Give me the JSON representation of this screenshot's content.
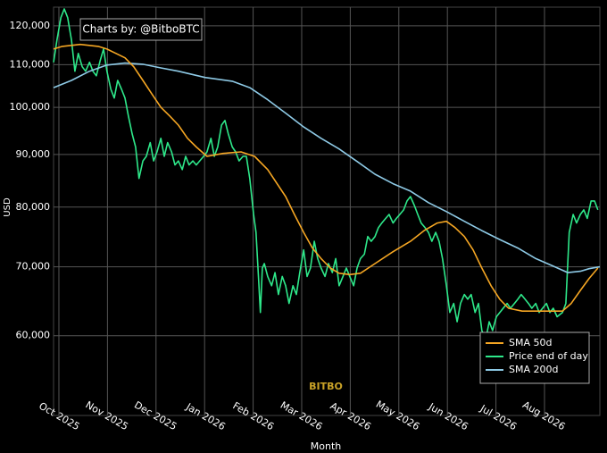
{
  "chart_data": {
    "type": "line",
    "annotation": "Charts by: @BitboBTC",
    "watermark": "BITBO",
    "xlabel": "Month",
    "ylabel": "USD",
    "log_y": true,
    "grid": true,
    "legend": "lower right",
    "xlim": [
      -0.11,
      11.14
    ],
    "xticks": [
      {
        "value": 0,
        "label": "Oct 2025"
      },
      {
        "value": 1,
        "label": "Nov 2025"
      },
      {
        "value": 2,
        "label": "Dec 2025"
      },
      {
        "value": 3,
        "label": "Jan 2026"
      },
      {
        "value": 4,
        "label": "Feb 2026"
      },
      {
        "value": 5,
        "label": "Mar 2026"
      },
      {
        "value": 6,
        "label": "Apr 2026"
      },
      {
        "value": 7,
        "label": "May 2026"
      },
      {
        "value": 8,
        "label": "Jun 2026"
      },
      {
        "value": 9,
        "label": "Jul 2026"
      },
      {
        "value": 10,
        "label": "Aug 2026"
      }
    ],
    "ylim": [
      50200,
      125100
    ],
    "yticks": [
      {
        "value": 60000,
        "label": "60,000"
      },
      {
        "value": 70000,
        "label": "70,000"
      },
      {
        "value": 80000,
        "label": "80,000"
      },
      {
        "value": 90000,
        "label": "90,000"
      },
      {
        "value": 100000,
        "label": "100,000"
      },
      {
        "value": 110000,
        "label": "110,000"
      },
      {
        "value": 120000,
        "label": "120,000"
      }
    ],
    "series": [
      {
        "name": "SMA 50d",
        "color": "#f5a623",
        "x": [
          -0.11,
          0.07,
          0.44,
          0.81,
          0.99,
          1.36,
          1.54,
          1.73,
          1.91,
          2.1,
          2.28,
          2.46,
          2.65,
          2.83,
          3.05,
          3.38,
          3.75,
          4.03,
          4.3,
          4.67,
          4.85,
          5.04,
          5.22,
          5.4,
          5.59,
          5.77,
          5.99,
          6.21,
          6.51,
          6.88,
          7.24,
          7.52,
          7.79,
          7.98,
          8.16,
          8.35,
          8.53,
          8.71,
          8.9,
          9.08,
          9.26,
          9.54,
          9.82,
          10.37,
          10.55,
          10.74,
          10.92,
          11.1
        ],
        "values": [
          113900,
          114600,
          115100,
          114600,
          113900,
          111700,
          109500,
          106200,
          103100,
          100000,
          98100,
          96100,
          93300,
          91500,
          89600,
          90200,
          90500,
          89600,
          87000,
          81900,
          78700,
          75600,
          73000,
          71300,
          69800,
          69000,
          68800,
          69000,
          70500,
          72400,
          74100,
          75900,
          77200,
          77500,
          76400,
          74900,
          72700,
          69800,
          67100,
          65100,
          63800,
          63400,
          63400,
          63400,
          64500,
          66400,
          68200,
          69800
        ]
      },
      {
        "name": "Price end of day",
        "color": "#2ee88a",
        "x": [
          -0.11,
          -0.04,
          0.04,
          0.11,
          0.18,
          0.26,
          0.33,
          0.4,
          0.48,
          0.55,
          0.63,
          0.7,
          0.77,
          0.85,
          0.92,
          0.99,
          1.07,
          1.14,
          1.21,
          1.29,
          1.36,
          1.43,
          1.51,
          1.58,
          1.65,
          1.73,
          1.8,
          1.88,
          1.95,
          2.02,
          2.1,
          2.17,
          2.24,
          2.32,
          2.39,
          2.46,
          2.54,
          2.61,
          2.68,
          2.76,
          2.83,
          2.9,
          2.98,
          3.05,
          3.13,
          3.2,
          3.27,
          3.35,
          3.42,
          3.49,
          3.57,
          3.64,
          3.71,
          3.79,
          3.86,
          3.93,
          4.01,
          4.06,
          4.12,
          4.15,
          4.19,
          4.23,
          4.3,
          4.38,
          4.45,
          4.52,
          4.6,
          4.67,
          4.74,
          4.82,
          4.89,
          4.96,
          5.04,
          5.11,
          5.18,
          5.26,
          5.33,
          5.4,
          5.48,
          5.55,
          5.63,
          5.7,
          5.77,
          5.85,
          5.92,
          5.99,
          6.07,
          6.14,
          6.21,
          6.29,
          6.36,
          6.43,
          6.51,
          6.58,
          6.65,
          6.73,
          6.8,
          6.88,
          6.95,
          7.02,
          7.1,
          7.17,
          7.24,
          7.32,
          7.39,
          7.46,
          7.54,
          7.61,
          7.68,
          7.76,
          7.83,
          7.9,
          7.98,
          8.05,
          8.13,
          8.2,
          8.27,
          8.35,
          8.42,
          8.49,
          8.57,
          8.64,
          8.71,
          8.79,
          8.86,
          8.93,
          9.01,
          9.08,
          9.15,
          9.23,
          9.3,
          9.38,
          9.45,
          9.52,
          9.6,
          9.67,
          9.74,
          9.82,
          9.89,
          9.96,
          10.04,
          10.11,
          10.18,
          10.26,
          10.37,
          10.44,
          10.51,
          10.59,
          10.66,
          10.74,
          10.81,
          10.88,
          10.96,
          11.03,
          11.1
        ],
        "values": [
          110600,
          116200,
          122200,
          124600,
          122200,
          116200,
          108400,
          112800,
          109500,
          108400,
          110600,
          108400,
          107300,
          111000,
          113900,
          108400,
          104100,
          102100,
          106200,
          104100,
          102100,
          98100,
          94200,
          91500,
          85300,
          88700,
          89600,
          92400,
          88700,
          90500,
          93300,
          89600,
          92400,
          90500,
          87900,
          88700,
          87000,
          89600,
          87900,
          88700,
          87900,
          88700,
          89600,
          90500,
          93300,
          89600,
          91500,
          96100,
          97100,
          94200,
          91500,
          90500,
          88700,
          89600,
          89600,
          85300,
          78700,
          75600,
          67100,
          63200,
          69800,
          70500,
          68500,
          67100,
          69100,
          65800,
          68500,
          67100,
          64500,
          67100,
          65800,
          69100,
          72700,
          68500,
          69800,
          74100,
          71300,
          69800,
          68500,
          70500,
          69100,
          71300,
          67100,
          68500,
          69800,
          68500,
          67100,
          69800,
          71300,
          72000,
          74900,
          74100,
          74900,
          76400,
          77200,
          78000,
          78700,
          77200,
          78000,
          78700,
          79500,
          81100,
          81900,
          80300,
          78700,
          77200,
          76400,
          75600,
          74100,
          75600,
          74100,
          71300,
          67100,
          63200,
          64500,
          61900,
          64500,
          65800,
          65100,
          65800,
          63200,
          64500,
          60700,
          59500,
          61900,
          60700,
          62600,
          63200,
          63800,
          64500,
          63800,
          64500,
          65100,
          65800,
          65100,
          64500,
          63800,
          64500,
          63200,
          63800,
          64500,
          63200,
          63800,
          62600,
          63200,
          64500,
          75600,
          78700,
          77200,
          78700,
          79500,
          78000,
          81100,
          81100,
          79500
        ]
      },
      {
        "name": "SMA 200d",
        "color": "#8ecae6",
        "x": [
          -0.11,
          0.26,
          0.63,
          0.99,
          1.36,
          1.73,
          2.1,
          2.46,
          3.01,
          3.57,
          3.93,
          4.3,
          4.67,
          5.04,
          5.4,
          5.77,
          6.14,
          6.51,
          6.88,
          7.24,
          7.61,
          7.98,
          8.35,
          8.71,
          9.08,
          9.45,
          9.82,
          10.18,
          10.48,
          10.74,
          10.92,
          11.14
        ],
        "values": [
          104500,
          106200,
          108400,
          109900,
          110400,
          110100,
          109200,
          108400,
          106900,
          106000,
          104500,
          101700,
          98700,
          95700,
          93300,
          91100,
          88600,
          86100,
          84300,
          82900,
          80800,
          79200,
          77500,
          75900,
          74400,
          73000,
          71300,
          70100,
          69100,
          69300,
          69700,
          70000
        ]
      }
    ]
  }
}
